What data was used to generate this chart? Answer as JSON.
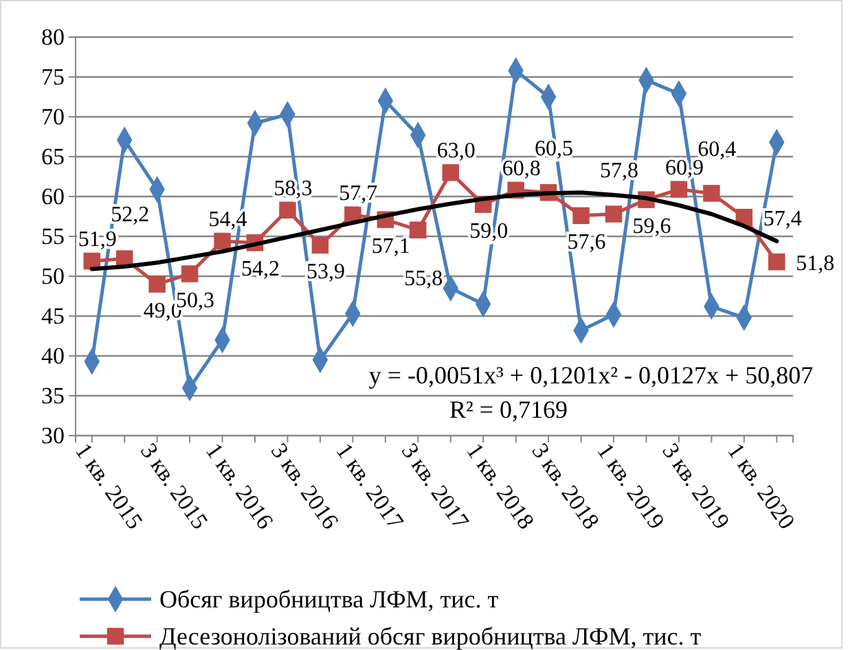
{
  "chart_data": {
    "type": "line",
    "categories": [
      "1 кв. 2015",
      null,
      "3 кв. 2015",
      null,
      "1 кв. 2016",
      null,
      "3 кв. 2016",
      null,
      "1 кв. 2017",
      null,
      "3 кв. 2017",
      null,
      "1 кв. 2018",
      null,
      "3 кв. 2018",
      null,
      "1 кв. 2019",
      null,
      "3 кв. 2019",
      null,
      "1 кв. 2020",
      null
    ],
    "ylim": [
      30,
      80
    ],
    "yticks": [
      30,
      35,
      40,
      45,
      50,
      55,
      60,
      65,
      70,
      75,
      80
    ],
    "grid": "y",
    "legend": "bottom",
    "series": [
      {
        "name": "Обсяг виробництва ЛФМ, тис. т",
        "color": "#4a7ebb",
        "marker": "diamond",
        "values": [
          39.3,
          67.1,
          60.9,
          36.0,
          42.0,
          69.2,
          70.3,
          39.5,
          45.3,
          72.0,
          67.7,
          48.5,
          46.5,
          75.8,
          72.5,
          43.2,
          45.2,
          74.6,
          72.9,
          46.2,
          44.8,
          66.8
        ]
      },
      {
        "name": "Десезонолізований обсяг виробництва ЛФМ, тис. т",
        "color": "#be4b48",
        "marker": "square",
        "values": [
          51.9,
          52.2,
          49.0,
          50.3,
          54.4,
          54.2,
          58.3,
          53.9,
          57.7,
          57.1,
          55.8,
          63.0,
          59.0,
          60.8,
          60.5,
          57.6,
          57.8,
          59.6,
          60.9,
          60.4,
          57.4,
          51.8
        ],
        "value_labels": [
          "51,9",
          "52,2",
          "49,0",
          "50,3",
          "54,4",
          "54,2",
          "58,3",
          "53,9",
          "57,7",
          "57,1",
          "55,8",
          "63,0",
          "59,0",
          "60,8",
          "60,5",
          "57,6",
          "57,8",
          "59,6",
          "60,9",
          "60,4",
          "57,4",
          "51,8"
        ]
      },
      {
        "type": "line",
        "color": "#000000",
        "marker": "none",
        "values": [
          50.9,
          51.2,
          51.7,
          52.4,
          53.1,
          54.0,
          54.9,
          55.8,
          56.7,
          57.6,
          58.4,
          59.1,
          59.7,
          60.2,
          60.4,
          60.5,
          60.2,
          59.8,
          58.9,
          57.8,
          56.3,
          54.4
        ]
      }
    ],
    "annotations": [
      "y = -0,0051x³ + 0,1201x² - 0,0127x + 50,807",
      "R² = 0,7169"
    ]
  }
}
